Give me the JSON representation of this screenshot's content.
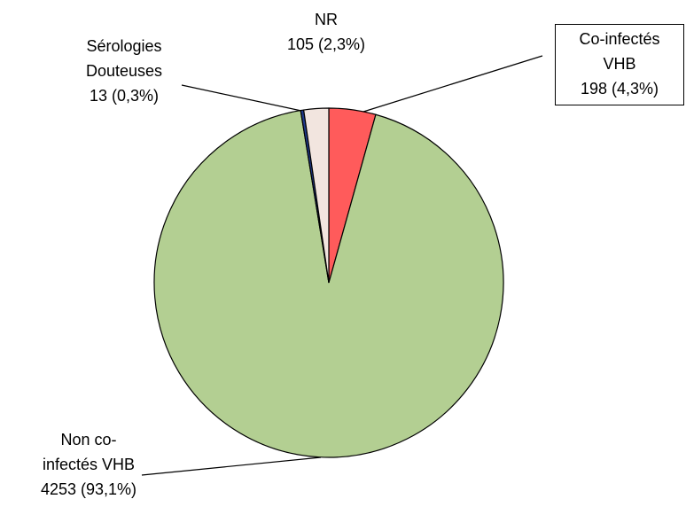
{
  "chart_data": {
    "type": "pie",
    "categories": [
      "Co-infectés VHB",
      "Non co-infectés VHB",
      "Sérologies Douteuses",
      "NR"
    ],
    "values": [
      198,
      4253,
      13,
      105
    ],
    "value_labels": [
      "198 (4,3%)",
      "4253 (93,1%)",
      "13 (0,3%)",
      "105 (2,3%)"
    ],
    "colors": [
      "#ff5b5b",
      "#b3cf92",
      "#1f3a8c",
      "#f2e5df"
    ]
  }
}
